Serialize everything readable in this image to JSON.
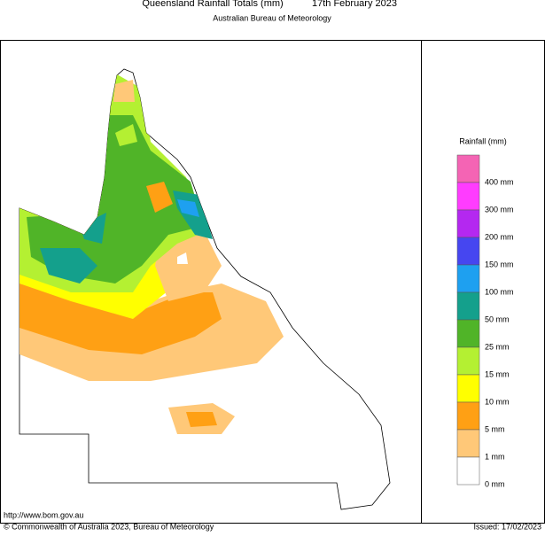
{
  "header": {
    "title": "Queensland Rainfall Totals (mm)",
    "date": "17th February 2023",
    "subtitle": "Australian Bureau of Meteorology"
  },
  "legend": {
    "title": "Rainfall (mm)",
    "swatches": [
      "#f464b4",
      "#ff3cff",
      "#b428f0",
      "#4646f0",
      "#1ea0f0",
      "#14a08c",
      "#50b428",
      "#b4f032",
      "#ffff00",
      "#ffa014",
      "#ffc878",
      "#ffffff"
    ],
    "labels": [
      "400 mm",
      "300 mm",
      "200 mm",
      "150 mm",
      "100 mm",
      "50 mm",
      "25 mm",
      "15 mm",
      "10 mm",
      "5 mm",
      "1 mm",
      "0 mm"
    ]
  },
  "footer": {
    "url": "http://www.bom.gov.au",
    "copyright": "© Commonwealth of Australia 2023, Bureau of Meteorology",
    "issued": "Issued: 17/02/2023"
  }
}
